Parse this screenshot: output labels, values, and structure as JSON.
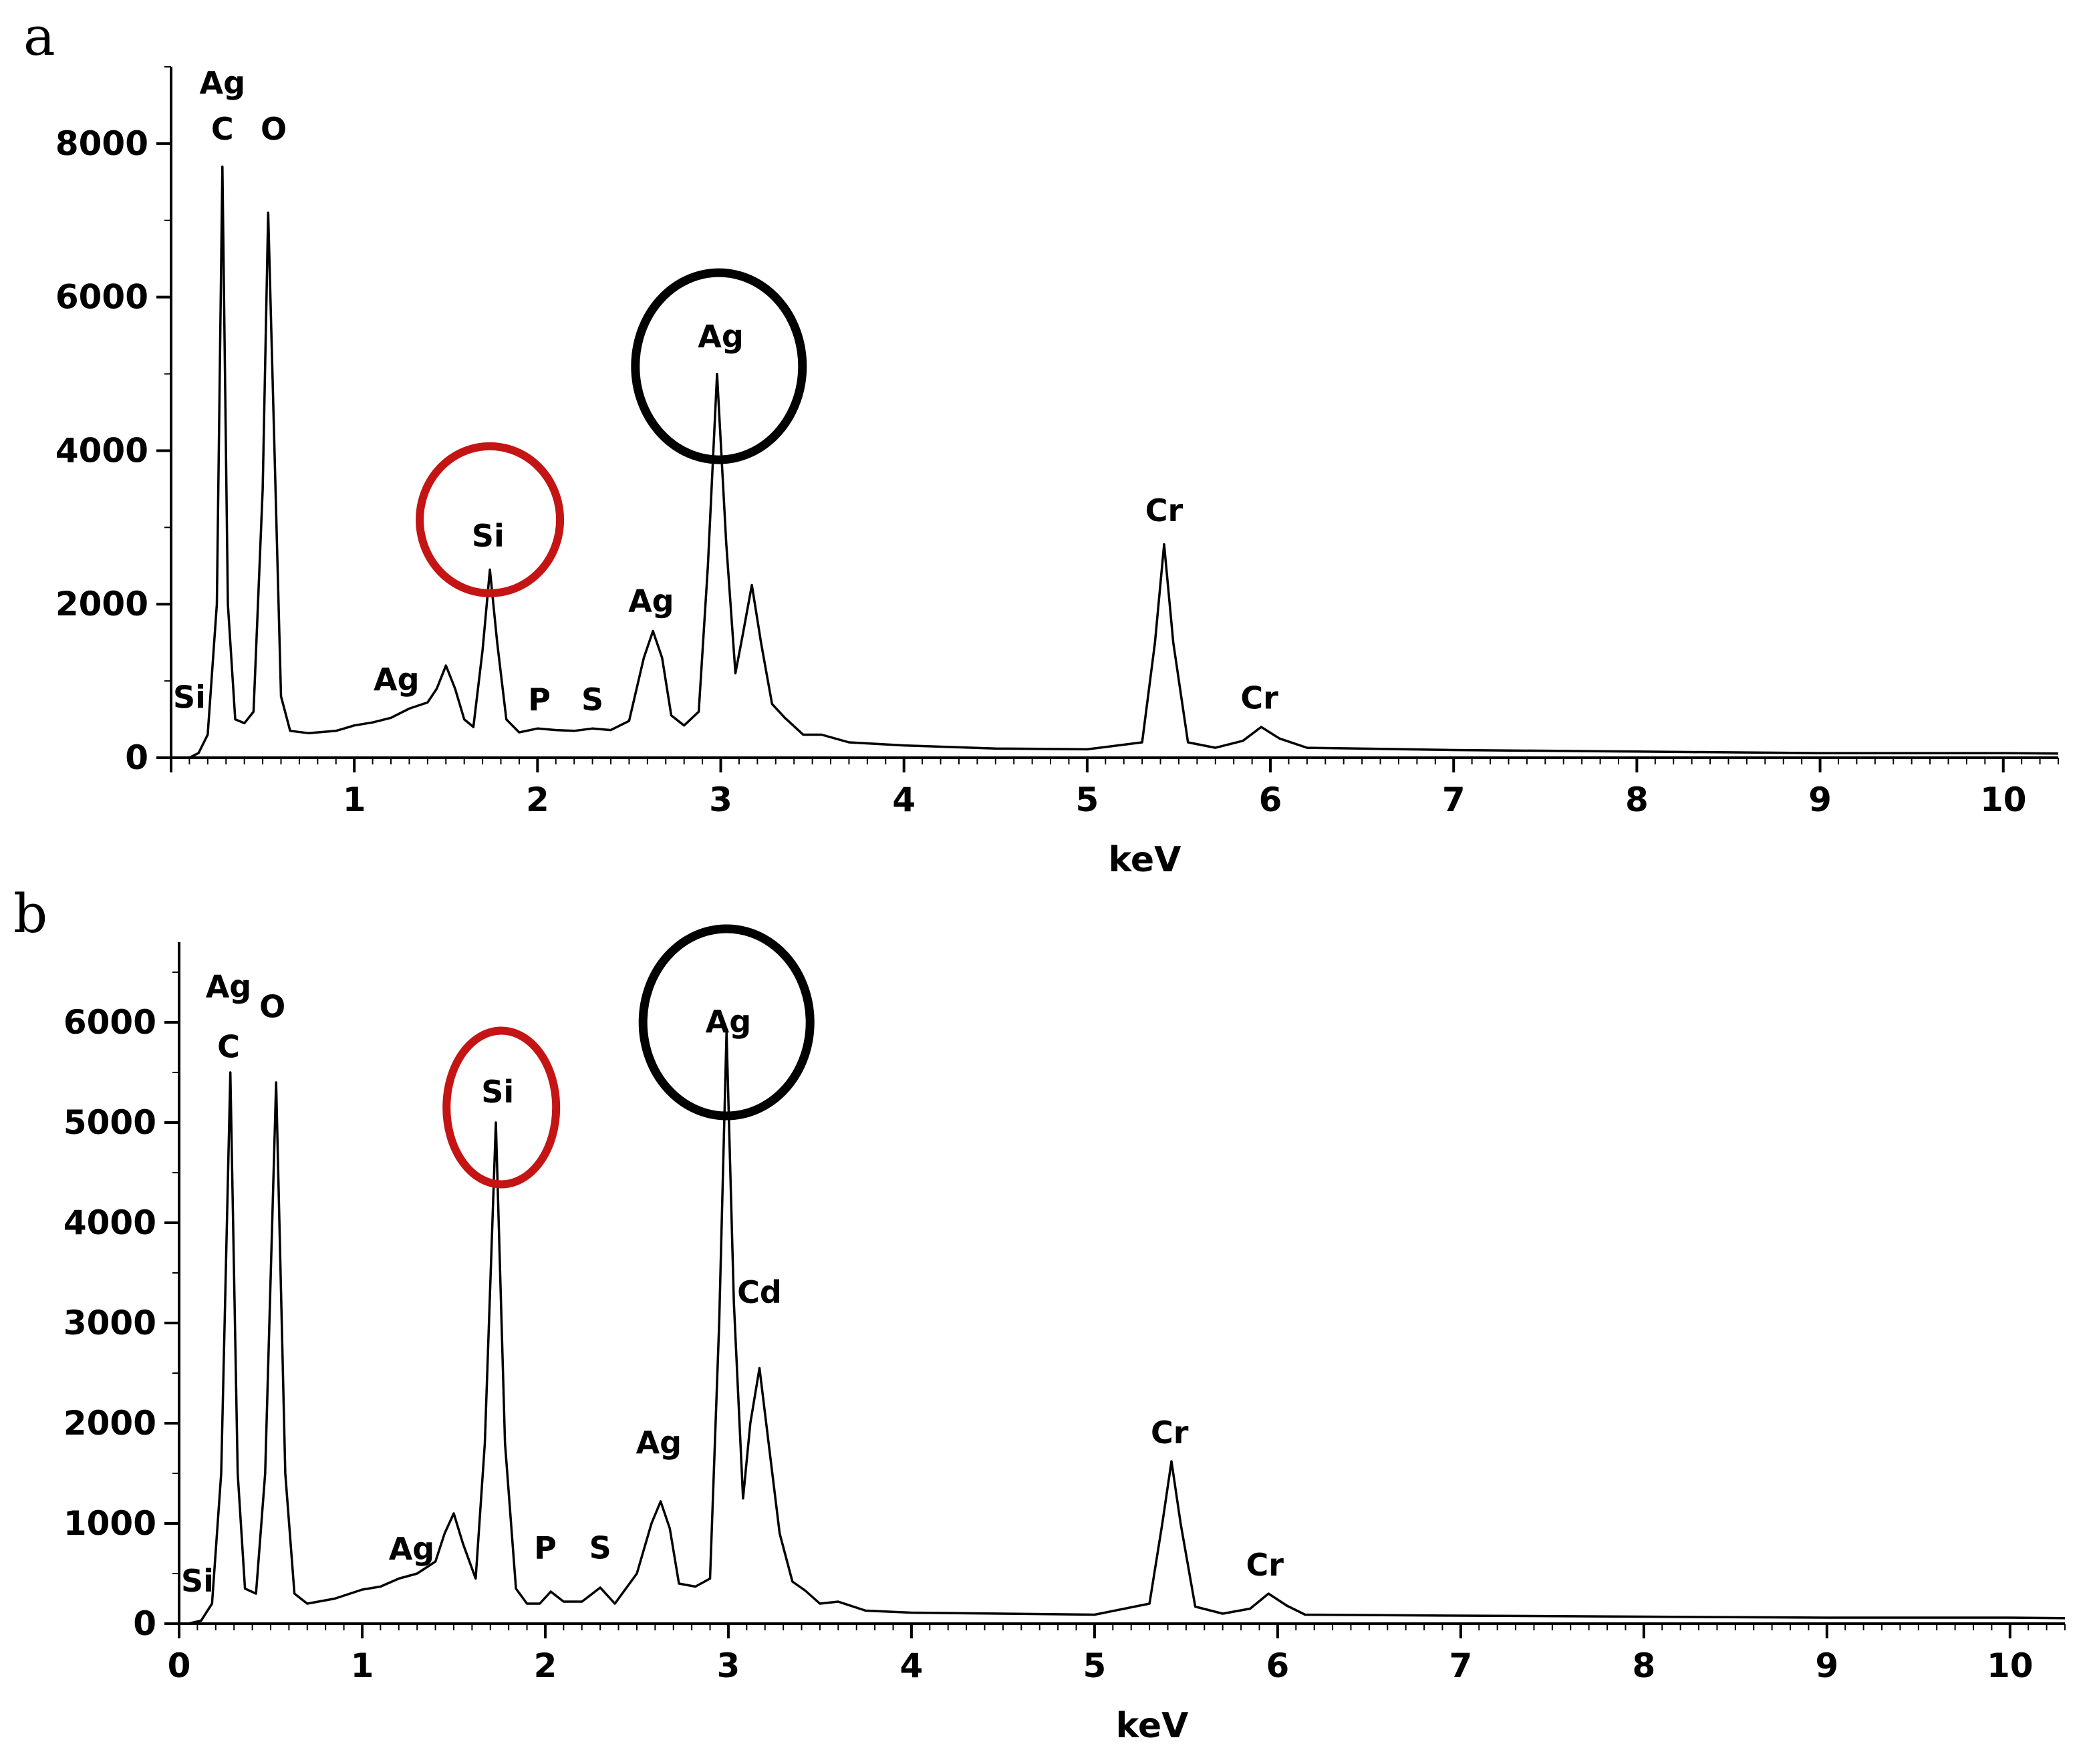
{
  "chart_data": [
    {
      "type": "line",
      "panel_label": "a",
      "xlabel": "keV",
      "ylabel": "",
      "xlim": [
        0,
        10.3
      ],
      "ylim": [
        0,
        9000
      ],
      "xticks": [
        1,
        2,
        3,
        4,
        5,
        6,
        7,
        8,
        9,
        10
      ],
      "yticks": [
        0,
        2000,
        4000,
        6000,
        8000
      ],
      "grid": false,
      "series": [
        {
          "points": [
            [
              0.1,
              0
            ],
            [
              0.15,
              60
            ],
            [
              0.2,
              300
            ],
            [
              0.25,
              2000
            ],
            [
              0.28,
              7700
            ],
            [
              0.31,
              2000
            ],
            [
              0.35,
              500
            ],
            [
              0.4,
              450
            ],
            [
              0.45,
              600
            ],
            [
              0.5,
              3500
            ],
            [
              0.53,
              7100
            ],
            [
              0.57,
              3500
            ],
            [
              0.6,
              800
            ],
            [
              0.65,
              350
            ],
            [
              0.75,
              320
            ],
            [
              0.9,
              350
            ],
            [
              1.0,
              420
            ],
            [
              1.1,
              460
            ],
            [
              1.2,
              520
            ],
            [
              1.3,
              640
            ],
            [
              1.4,
              720
            ],
            [
              1.45,
              900
            ],
            [
              1.5,
              1200
            ],
            [
              1.55,
              900
            ],
            [
              1.6,
              500
            ],
            [
              1.65,
              400
            ],
            [
              1.7,
              1400
            ],
            [
              1.74,
              2450
            ],
            [
              1.78,
              1500
            ],
            [
              1.83,
              500
            ],
            [
              1.9,
              330
            ],
            [
              2.0,
              380
            ],
            [
              2.1,
              360
            ],
            [
              2.2,
              350
            ],
            [
              2.3,
              380
            ],
            [
              2.4,
              360
            ],
            [
              2.5,
              480
            ],
            [
              2.58,
              1300
            ],
            [
              2.63,
              1650
            ],
            [
              2.68,
              1300
            ],
            [
              2.73,
              550
            ],
            [
              2.8,
              420
            ],
            [
              2.88,
              600
            ],
            [
              2.93,
              2500
            ],
            [
              2.98,
              5000
            ],
            [
              3.03,
              2800
            ],
            [
              3.08,
              1100
            ],
            [
              3.12,
              1600
            ],
            [
              3.17,
              2250
            ],
            [
              3.22,
              1500
            ],
            [
              3.28,
              700
            ],
            [
              3.35,
              520
            ],
            [
              3.45,
              300
            ],
            [
              3.55,
              300
            ],
            [
              3.7,
              200
            ],
            [
              4.0,
              160
            ],
            [
              4.5,
              120
            ],
            [
              5.0,
              110
            ],
            [
              5.3,
              200
            ],
            [
              5.37,
              1500
            ],
            [
              5.42,
              2780
            ],
            [
              5.47,
              1500
            ],
            [
              5.55,
              200
            ],
            [
              5.7,
              130
            ],
            [
              5.85,
              220
            ],
            [
              5.95,
              400
            ],
            [
              6.05,
              250
            ],
            [
              6.2,
              130
            ],
            [
              7.0,
              100
            ],
            [
              8.0,
              80
            ],
            [
              9.0,
              60
            ],
            [
              10.0,
              60
            ],
            [
              10.3,
              55
            ]
          ]
        }
      ],
      "annotations": [
        {
          "text": "Ag",
          "x": 0.28,
          "y": 8650
        },
        {
          "text": "C",
          "x": 0.28,
          "y": 8050
        },
        {
          "text": "O",
          "x": 0.56,
          "y": 8050
        },
        {
          "text": "Si",
          "x": 0.1,
          "y": 650
        },
        {
          "text": "Ag",
          "x": 1.23,
          "y": 880
        },
        {
          "text": "Si",
          "x": 1.73,
          "y": 2750
        },
        {
          "text": "P",
          "x": 2.01,
          "y": 620
        },
        {
          "text": "S",
          "x": 2.3,
          "y": 620
        },
        {
          "text": "Ag",
          "x": 2.62,
          "y": 1900
        },
        {
          "text": "Ag",
          "x": 3.0,
          "y": 5350
        },
        {
          "text": "Cr",
          "x": 5.42,
          "y": 3080
        },
        {
          "text": "Cr",
          "x": 5.94,
          "y": 640
        }
      ],
      "highlight_circles": [
        {
          "element": "Si",
          "color": "#c41414"
        },
        {
          "element": "Ag",
          "color": "#000000"
        }
      ]
    },
    {
      "type": "line",
      "panel_label": "b",
      "xlabel": "keV",
      "ylabel": "",
      "xlim": [
        0,
        10.3
      ],
      "ylim": [
        0,
        6800
      ],
      "xticks": [
        0,
        1,
        2,
        3,
        4,
        5,
        6,
        7,
        8,
        9,
        10
      ],
      "yticks": [
        0,
        1000,
        2000,
        3000,
        4000,
        5000,
        6000
      ],
      "grid": false,
      "series": [
        {
          "points": [
            [
              0.05,
              0
            ],
            [
              0.12,
              30
            ],
            [
              0.18,
              200
            ],
            [
              0.23,
              1500
            ],
            [
              0.28,
              5500
            ],
            [
              0.32,
              1500
            ],
            [
              0.36,
              350
            ],
            [
              0.42,
              300
            ],
            [
              0.47,
              1500
            ],
            [
              0.53,
              5400
            ],
            [
              0.58,
              1500
            ],
            [
              0.63,
              300
            ],
            [
              0.7,
              200
            ],
            [
              0.85,
              250
            ],
            [
              1.0,
              340
            ],
            [
              1.1,
              370
            ],
            [
              1.2,
              450
            ],
            [
              1.3,
              500
            ],
            [
              1.4,
              620
            ],
            [
              1.45,
              900
            ],
            [
              1.5,
              1100
            ],
            [
              1.55,
              800
            ],
            [
              1.62,
              450
            ],
            [
              1.67,
              1800
            ],
            [
              1.73,
              5000
            ],
            [
              1.78,
              1800
            ],
            [
              1.84,
              350
            ],
            [
              1.9,
              200
            ],
            [
              1.97,
              200
            ],
            [
              2.03,
              320
            ],
            [
              2.1,
              220
            ],
            [
              2.2,
              220
            ],
            [
              2.3,
              360
            ],
            [
              2.38,
              200
            ],
            [
              2.5,
              500
            ],
            [
              2.58,
              1000
            ],
            [
              2.63,
              1220
            ],
            [
              2.68,
              950
            ],
            [
              2.73,
              400
            ],
            [
              2.82,
              370
            ],
            [
              2.9,
              450
            ],
            [
              2.95,
              3000
            ],
            [
              2.99,
              5900
            ],
            [
              3.03,
              3200
            ],
            [
              3.08,
              1250
            ],
            [
              3.12,
              2000
            ],
            [
              3.17,
              2550
            ],
            [
              3.22,
              1800
            ],
            [
              3.28,
              900
            ],
            [
              3.35,
              420
            ],
            [
              3.42,
              330
            ],
            [
              3.5,
              200
            ],
            [
              3.6,
              220
            ],
            [
              3.75,
              130
            ],
            [
              4.0,
              110
            ],
            [
              4.5,
              100
            ],
            [
              5.0,
              90
            ],
            [
              5.3,
              200
            ],
            [
              5.37,
              1000
            ],
            [
              5.42,
              1620
            ],
            [
              5.47,
              1000
            ],
            [
              5.55,
              170
            ],
            [
              5.7,
              100
            ],
            [
              5.85,
              150
            ],
            [
              5.95,
              300
            ],
            [
              6.05,
              180
            ],
            [
              6.15,
              90
            ],
            [
              7.0,
              80
            ],
            [
              8.0,
              70
            ],
            [
              9.0,
              60
            ],
            [
              10.0,
              60
            ],
            [
              10.3,
              55
            ]
          ]
        }
      ],
      "annotations": [
        {
          "text": "Ag",
          "x": 0.27,
          "y": 6250
        },
        {
          "text": "C",
          "x": 0.27,
          "y": 5650
        },
        {
          "text": "O",
          "x": 0.51,
          "y": 6050
        },
        {
          "text": "Si",
          "x": 0.1,
          "y": 320
        },
        {
          "text": "Ag",
          "x": 1.27,
          "y": 640
        },
        {
          "text": "Si",
          "x": 1.74,
          "y": 5200
        },
        {
          "text": "P",
          "x": 2.0,
          "y": 650
        },
        {
          "text": "S",
          "x": 2.3,
          "y": 650
        },
        {
          "text": "Ag",
          "x": 2.62,
          "y": 1700
        },
        {
          "text": "Ag",
          "x": 3.0,
          "y": 5900
        },
        {
          "text": "Cd",
          "x": 3.17,
          "y": 3200
        },
        {
          "text": "Cr",
          "x": 5.41,
          "y": 1800
        },
        {
          "text": "Cr",
          "x": 5.93,
          "y": 480
        }
      ],
      "highlight_circles": [
        {
          "element": "Si",
          "color": "#c41414"
        },
        {
          "element": "Ag",
          "color": "#000000"
        }
      ]
    }
  ]
}
